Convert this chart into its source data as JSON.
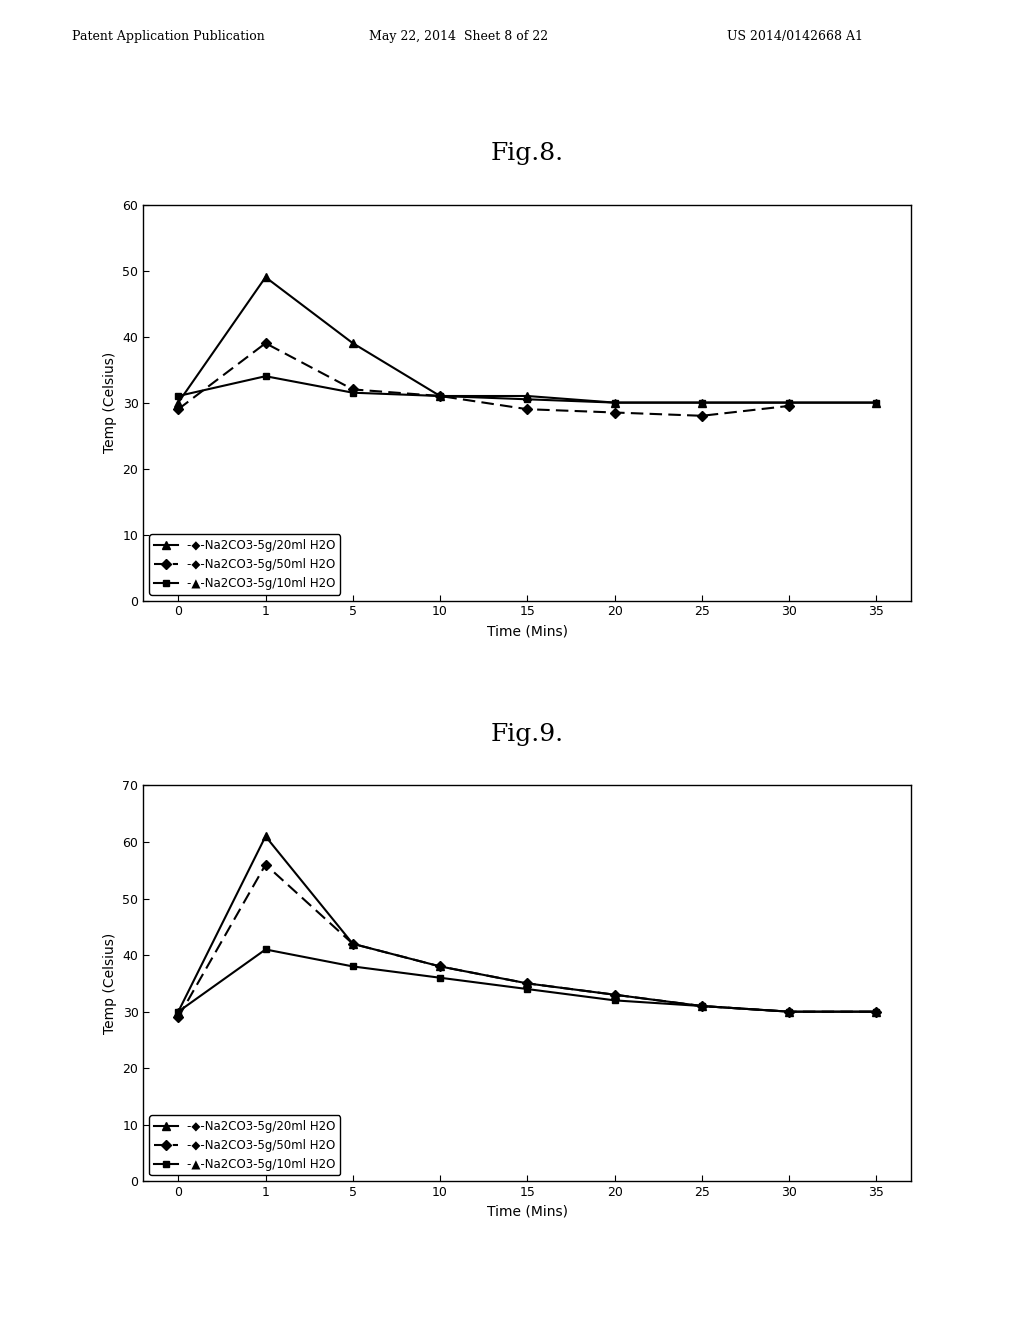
{
  "fig8": {
    "title": "Fig.8.",
    "xlabel": "Time (Mins)",
    "ylabel": "Temp (Celsius)",
    "ylim": [
      0,
      60
    ],
    "yticks": [
      0,
      10,
      20,
      30,
      40,
      50,
      60
    ],
    "xtick_labels": [
      "0",
      "1",
      "5",
      "10",
      "15",
      "20",
      "25",
      "30",
      "35"
    ],
    "series": [
      {
        "label": "→Na2CO3-5g/20ml H2O",
        "xi": [
          0,
          1,
          2,
          3,
          4,
          5,
          6,
          7,
          8
        ],
        "y": [
          30,
          49,
          39,
          31,
          31,
          30,
          30,
          30,
          30
        ],
        "linestyle": "-",
        "color": "#000000",
        "marker": "^",
        "markersize": 6,
        "linewidth": 1.5,
        "dashes": null
      },
      {
        "label": "→Na2CO3-5g/50ml H2O",
        "xi": [
          0,
          1,
          2,
          3,
          4,
          5,
          6,
          7
        ],
        "y": [
          29,
          39,
          32,
          31,
          29,
          28.5,
          28,
          29.5
        ],
        "linestyle": "--",
        "color": "#000000",
        "marker": "D",
        "markersize": 5,
        "linewidth": 1.5,
        "dashes": [
          6,
          3
        ]
      },
      {
        "label": "→Na2CO3-5g/10ml H2O",
        "xi": [
          0,
          1,
          2,
          3,
          4,
          5,
          6,
          7,
          8
        ],
        "y": [
          31,
          34,
          31.5,
          31,
          30.5,
          30,
          30,
          30,
          30
        ],
        "linestyle": "-",
        "color": "#000000",
        "marker": "s",
        "markersize": 5,
        "linewidth": 1.5,
        "dashes": null
      }
    ],
    "legend_labels": [
      "→Na2CO3-5g/20ml H2O",
      "→Na2CO3-5g/50ml H2O",
      "→Na2CO3-5g/10ml H2O"
    ]
  },
  "fig9": {
    "title": "Fig.9.",
    "xlabel": "Time (Mins)",
    "ylabel": "Temp (Celsius)",
    "ylim": [
      0,
      70
    ],
    "yticks": [
      0,
      10,
      20,
      30,
      40,
      50,
      60,
      70
    ],
    "xtick_labels": [
      "0",
      "1",
      "5",
      "10",
      "15",
      "20",
      "25",
      "30",
      "35"
    ],
    "series": [
      {
        "label": "→Na2CO3-5g/20ml H2O",
        "xi": [
          0,
          1,
          2,
          3,
          4,
          5,
          6,
          7,
          8
        ],
        "y": [
          30,
          61,
          42,
          38,
          35,
          33,
          31,
          30,
          30
        ],
        "linestyle": "-",
        "color": "#000000",
        "marker": "^",
        "markersize": 6,
        "linewidth": 1.5,
        "dashes": null
      },
      {
        "label": "→Na2CO3-5g/50ml H2O",
        "xi": [
          0,
          1,
          2,
          3,
          4,
          5,
          6,
          7,
          8
        ],
        "y": [
          29,
          56,
          42,
          38,
          35,
          33,
          31,
          30,
          30
        ],
        "linestyle": "--",
        "color": "#000000",
        "marker": "D",
        "markersize": 5,
        "linewidth": 1.5,
        "dashes": [
          6,
          3
        ]
      },
      {
        "label": "→Na2CO3-5g/10ml H2O",
        "xi": [
          0,
          1,
          2,
          3,
          4,
          5,
          6,
          7,
          8
        ],
        "y": [
          30,
          41,
          38,
          36,
          34,
          32,
          31,
          30,
          30
        ],
        "linestyle": "-",
        "color": "#000000",
        "marker": "s",
        "markersize": 5,
        "linewidth": 1.5,
        "dashes": null
      }
    ],
    "legend_labels": [
      "→Na2CO3-5g/20ml H2O",
      "→Na2CO3-5g/50ml H2O",
      "→Na2CO3-5g/10ml H2O"
    ]
  },
  "header_left": "Patent Application Publication",
  "header_center": "May 22, 2014  Sheet 8 of 22",
  "header_right": "US 2014/0142668 A1"
}
